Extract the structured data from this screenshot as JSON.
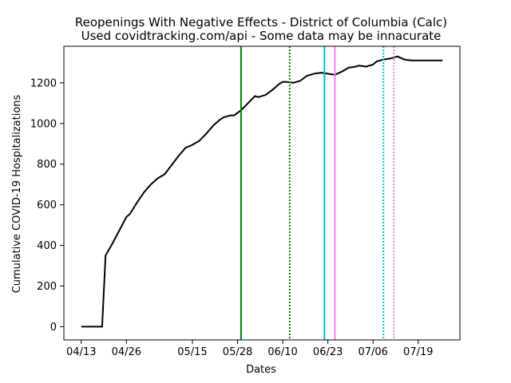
{
  "chart_data": {
    "type": "line",
    "title": "Reopenings With Negative Effects - District of Columbia (Calc)",
    "subtitle": "Used covidtracking.com/api - Some data may be innacurate",
    "xlabel": "Dates",
    "ylabel": "Cumulative COVID-19 Hospitalizations",
    "xlim": [
      "2020-04-08",
      "2020-07-31"
    ],
    "ylim": [
      -65,
      1380
    ],
    "x_ticks": [
      {
        "date": "2020-04-13",
        "label": "04/13"
      },
      {
        "date": "2020-04-26",
        "label": "04/26"
      },
      {
        "date": "2020-05-15",
        "label": "05/15"
      },
      {
        "date": "2020-05-28",
        "label": "05/28"
      },
      {
        "date": "2020-06-10",
        "label": "06/10"
      },
      {
        "date": "2020-06-23",
        "label": "06/23"
      },
      {
        "date": "2020-07-06",
        "label": "07/06"
      },
      {
        "date": "2020-07-19",
        "label": "07/19"
      }
    ],
    "y_ticks": [
      0,
      200,
      400,
      600,
      800,
      1000,
      1200
    ],
    "grid": false,
    "series": [
      {
        "color": "#000000",
        "x": [
          "2020-04-13",
          "2020-04-19",
          "2020-04-20",
          "2020-04-22",
          "2020-04-24",
          "2020-04-26",
          "2020-04-27",
          "2020-04-29",
          "2020-05-01",
          "2020-05-03",
          "2020-05-05",
          "2020-05-07",
          "2020-05-09",
          "2020-05-11",
          "2020-05-13",
          "2020-05-15",
          "2020-05-17",
          "2020-05-19",
          "2020-05-21",
          "2020-05-23",
          "2020-05-24",
          "2020-05-26",
          "2020-05-27",
          "2020-05-29",
          "2020-05-31",
          "2020-06-02",
          "2020-06-03",
          "2020-06-05",
          "2020-06-07",
          "2020-06-09",
          "2020-06-10",
          "2020-06-11",
          "2020-06-13",
          "2020-06-15",
          "2020-06-17",
          "2020-06-19",
          "2020-06-21",
          "2020-06-23",
          "2020-06-25",
          "2020-06-27",
          "2020-06-29",
          "2020-07-01",
          "2020-07-02",
          "2020-07-04",
          "2020-07-06",
          "2020-07-07",
          "2020-07-09",
          "2020-07-11",
          "2020-07-13",
          "2020-07-15",
          "2020-07-17",
          "2020-07-19",
          "2020-07-21",
          "2020-07-23",
          "2020-07-24",
          "2020-07-26"
        ],
        "y": [
          0,
          0,
          350,
          410,
          475,
          540,
          555,
          610,
          660,
          700,
          730,
          750,
          795,
          840,
          880,
          895,
          915,
          950,
          990,
          1020,
          1030,
          1040,
          1040,
          1065,
          1100,
          1135,
          1130,
          1140,
          1165,
          1195,
          1205,
          1205,
          1200,
          1210,
          1235,
          1245,
          1250,
          1245,
          1240,
          1255,
          1275,
          1280,
          1285,
          1280,
          1290,
          1305,
          1315,
          1320,
          1330,
          1315,
          1310,
          1310,
          1310,
          1310,
          1310,
          1310
        ]
      }
    ],
    "vertical_lines": [
      {
        "date": "2020-05-29",
        "color": "#008000",
        "style": "solid"
      },
      {
        "date": "2020-06-12",
        "color": "#008000",
        "style": "dotted"
      },
      {
        "date": "2020-06-22",
        "color": "#00bfbf",
        "style": "solid"
      },
      {
        "date": "2020-06-25",
        "color": "#ee82ee",
        "style": "solid"
      },
      {
        "date": "2020-07-09",
        "color": "#00bfbf",
        "style": "dotted"
      },
      {
        "date": "2020-07-12",
        "color": "#ee82ee",
        "style": "dotted"
      }
    ]
  }
}
